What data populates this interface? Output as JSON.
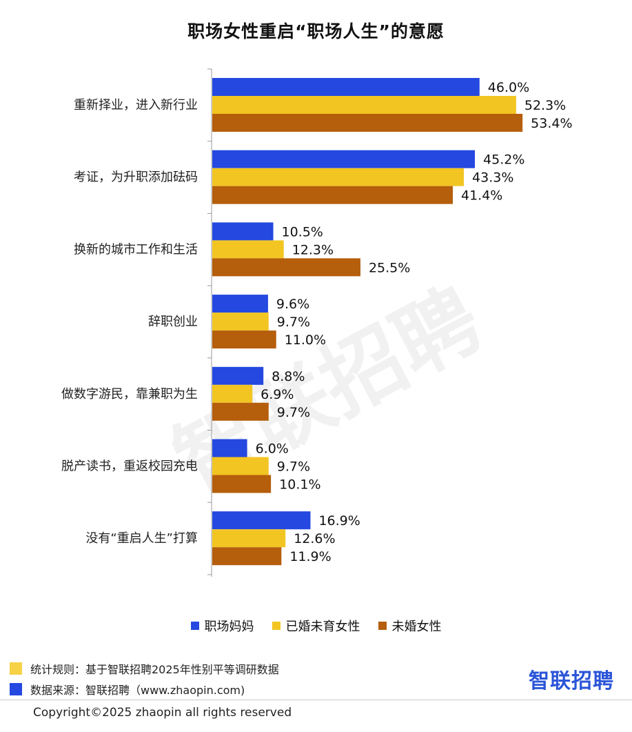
{
  "watermark": "智联招聘",
  "chart_data": {
    "type": "bar",
    "orientation": "horizontal",
    "title": "职场女性重启“职场人生”的意愿",
    "categories": [
      "重新择业，进入新行业",
      "考证，为升职添加砝码",
      "换新的城市工作和生活",
      "辞职创业",
      "做数字游民，靠兼职为生",
      "脱产读书，重返校园充电",
      "没有“重启人生”打算"
    ],
    "series": [
      {
        "name": "职场妈妈",
        "color": "#2448e0",
        "values": [
          46.0,
          45.2,
          10.5,
          9.6,
          8.8,
          6.0,
          16.9
        ]
      },
      {
        "name": "已婚未育女性",
        "color": "#f2c522",
        "values": [
          52.3,
          43.3,
          12.3,
          9.7,
          6.9,
          9.7,
          12.6
        ]
      },
      {
        "name": "未婚女性",
        "color": "#b55e0c",
        "values": [
          53.4,
          41.4,
          25.5,
          11.0,
          9.7,
          10.1,
          11.9
        ]
      }
    ],
    "value_suffix": "%",
    "legend_position": "bottom"
  },
  "footer": {
    "note1_color": "#f7d247",
    "note1": "统计规则：基于智联招聘2025年性别平等调研数据",
    "note2_color": "#2448e0",
    "note2": "数据来源：智联招聘（www.zhaopin.com)",
    "brand": "智联招聘",
    "copyright": "Copyright©2025 zhaopin all rights reserved"
  }
}
